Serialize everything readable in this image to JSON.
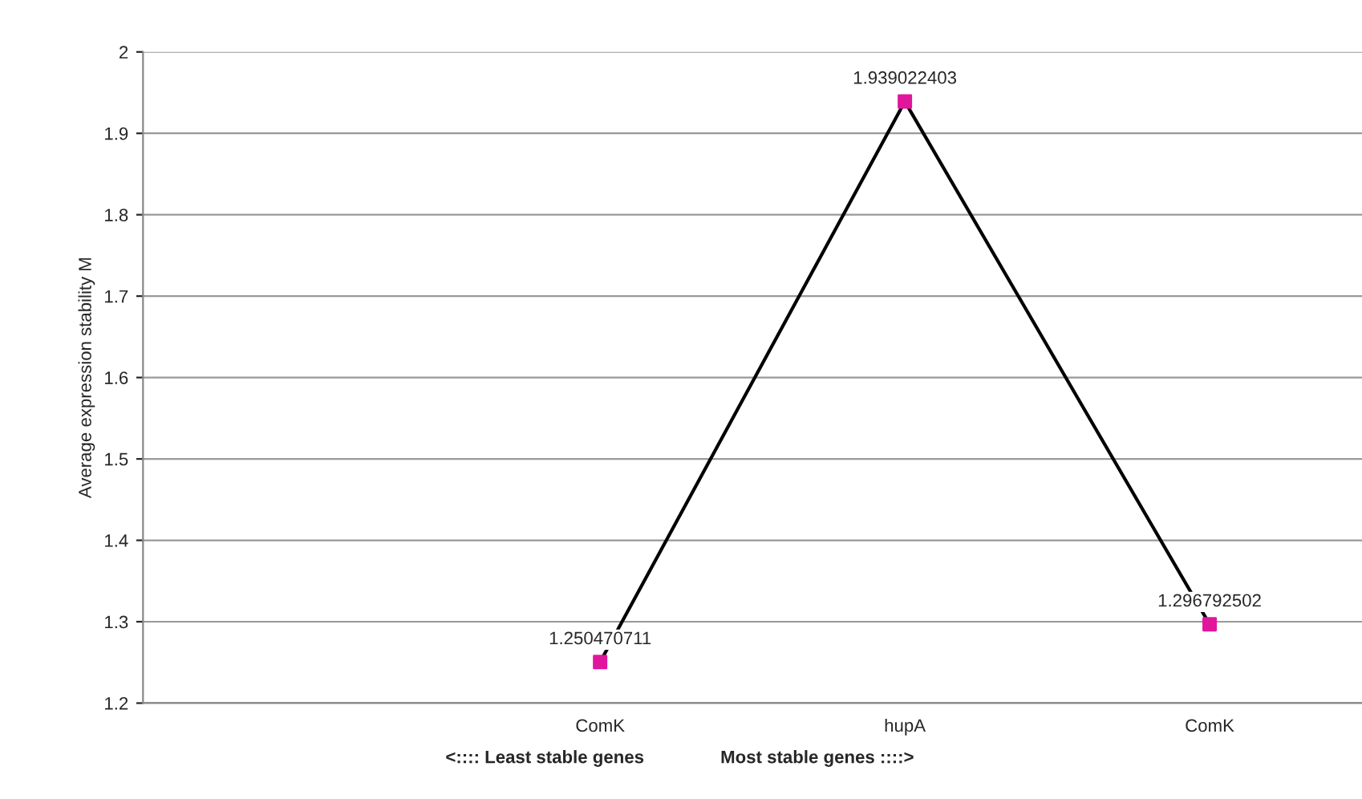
{
  "chart_data": {
    "type": "line",
    "ylabel": "Average expression stability M",
    "categories": [
      null,
      "ComK",
      "hupA",
      "ComK"
    ],
    "series": [
      {
        "color": "#000000",
        "colors": [
          "#e0169c",
          "#e0169c",
          "#e0169c",
          "#e0169c"
        ],
        "values": [
          null,
          1.250470711,
          1.939022403,
          1.296792502
        ]
      }
    ],
    "ylim": [
      1.2,
      2
    ],
    "yticks": [
      1.2,
      1.3,
      1.4,
      1.5,
      1.6,
      1.7,
      1.8,
      1.9,
      2
    ],
    "grid": "y",
    "marker": "square",
    "line_style": "solid",
    "data_labels": true,
    "annotations": [
      "<:::: Least stable genes",
      "Most stable genes ::::>"
    ]
  }
}
